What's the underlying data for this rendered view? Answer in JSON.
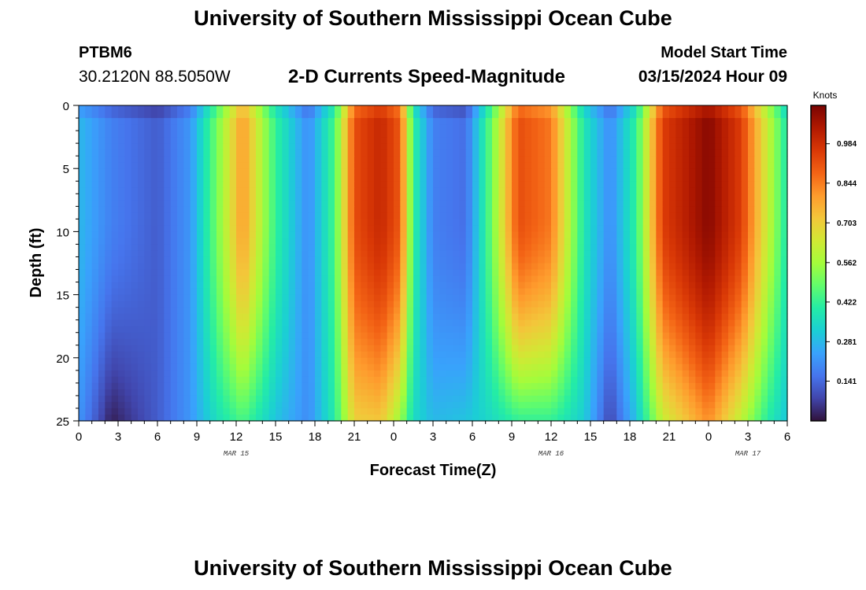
{
  "header": {
    "title": "University of Southern Mississippi Ocean Cube",
    "station": "PTBM6",
    "coords": "30.2120N  88.5050W",
    "subtitle": "2-D Currents Speed-Magnitude",
    "model_start_label": "Model Start Time",
    "model_start_value": "03/15/2024 Hour 09"
  },
  "footer": {
    "title": "University of Southern Mississippi Ocean Cube"
  },
  "colors": {
    "scale": [
      "#30123b",
      "#4145ab",
      "#4675ed",
      "#39a2fc",
      "#1bcfd4",
      "#24eca6",
      "#61fc6c",
      "#a4fc3b",
      "#d1e834",
      "#f3c63a",
      "#fe9b2d",
      "#f36315",
      "#d93806",
      "#b11901",
      "#7a0402"
    ]
  },
  "chart_data": {
    "type": "heatmap",
    "title": "2-D Currents Speed-Magnitude",
    "xlabel": "Forecast Time(Z)",
    "ylabel": "Depth (ft)",
    "colorbar_label": "Knots",
    "x_range_hours": [
      0,
      54
    ],
    "y_range": [
      0,
      25
    ],
    "y_inverted": true,
    "value_range": [
      0,
      1.12
    ],
    "x_tick_labels": [
      "0",
      "3",
      "6",
      "9",
      "12",
      "15",
      "18",
      "21",
      "0",
      "3",
      "6",
      "9",
      "12",
      "15",
      "18",
      "21",
      "0",
      "3",
      "6"
    ],
    "y_tick_labels": [
      "0",
      "5",
      "10",
      "15",
      "20",
      "25"
    ],
    "date_labels": [
      {
        "hour": 12,
        "text": "MAR 15"
      },
      {
        "hour": 36,
        "text": "MAR 16"
      },
      {
        "hour": 51,
        "text": "MAR 17"
      }
    ],
    "colorbar_ticks": [
      0.141,
      0.281,
      0.422,
      0.562,
      0.703,
      0.844,
      0.984
    ],
    "time_profile": [
      {
        "hour": 0,
        "surface": 0.28,
        "bottom": 0.22
      },
      {
        "hour": 2.5,
        "surface": 0.18,
        "bottom": 0.02
      },
      {
        "hour": 6,
        "surface": 0.12,
        "bottom": 0.12
      },
      {
        "hour": 8.5,
        "surface": 0.22,
        "bottom": 0.22
      },
      {
        "hour": 10.5,
        "surface": 0.5,
        "bottom": 0.36
      },
      {
        "hour": 12.5,
        "surface": 0.8,
        "bottom": 0.45
      },
      {
        "hour": 15,
        "surface": 0.42,
        "bottom": 0.3
      },
      {
        "hour": 17.5,
        "surface": 0.2,
        "bottom": 0.2
      },
      {
        "hour": 19.5,
        "surface": 0.45,
        "bottom": 0.4
      },
      {
        "hour": 21,
        "surface": 0.92,
        "bottom": 0.7
      },
      {
        "hour": 23,
        "surface": 1.0,
        "bottom": 0.72
      },
      {
        "hour": 24.5,
        "surface": 0.9,
        "bottom": 0.55
      },
      {
        "hour": 25.5,
        "surface": 0.42,
        "bottom": 0.35
      },
      {
        "hour": 27,
        "surface": 0.18,
        "bottom": 0.28
      },
      {
        "hour": 29.5,
        "surface": 0.15,
        "bottom": 0.3
      },
      {
        "hour": 31.5,
        "surface": 0.5,
        "bottom": 0.35
      },
      {
        "hour": 33.5,
        "surface": 0.92,
        "bottom": 0.42
      },
      {
        "hour": 36,
        "surface": 0.85,
        "bottom": 0.42
      },
      {
        "hour": 38.5,
        "surface": 0.38,
        "bottom": 0.32
      },
      {
        "hour": 40.5,
        "surface": 0.2,
        "bottom": 0.08
      },
      {
        "hour": 42.5,
        "surface": 0.42,
        "bottom": 0.3
      },
      {
        "hour": 44.5,
        "surface": 0.95,
        "bottom": 0.62
      },
      {
        "hour": 48,
        "surface": 1.1,
        "bottom": 0.82
      },
      {
        "hour": 50.5,
        "surface": 0.95,
        "bottom": 0.6
      },
      {
        "hour": 52.5,
        "surface": 0.62,
        "bottom": 0.4
      },
      {
        "hour": 54,
        "surface": 0.38,
        "bottom": 0.3
      }
    ]
  }
}
